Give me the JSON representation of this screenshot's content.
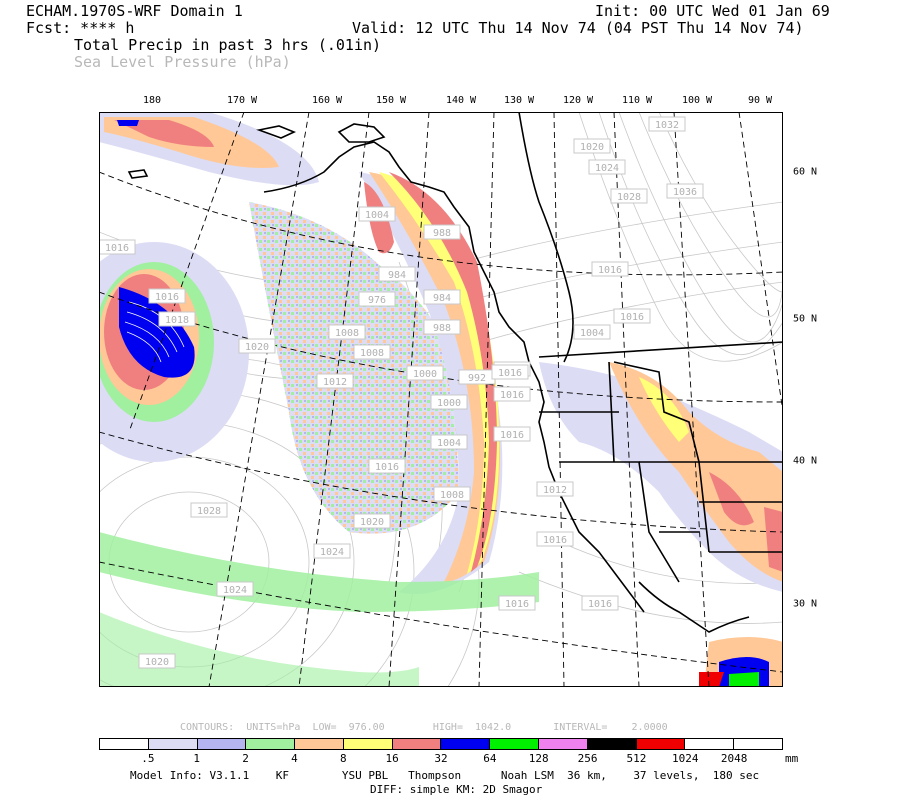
{
  "header": {
    "model": "ECHAM.1970S-WRF Domain 1",
    "fcst": "Fcst: **** h",
    "init": "Init: 00 UTC Wed 01 Jan 69",
    "valid": "Valid: 12 UTC Thu 14 Nov 74 (04 PST Thu 14 Nov 74)",
    "field1": "Total Precip in past 3 hrs (.01in)",
    "field2": "Sea Level Pressure (hPa)"
  },
  "lon_labels": [
    "180",
    "170 W",
    "160 W",
    "150 W",
    "140 W",
    "130 W",
    "120 W",
    "110 W",
    "100 W",
    "90 W"
  ],
  "lat_labels": [
    "60 N",
    "50 N",
    "40 N",
    "30 N"
  ],
  "pressure_labels": [
    "1032",
    "1020",
    "1024",
    "1028",
    "1036",
    "1016",
    "1016",
    "1004",
    "1016",
    "1016",
    "1016",
    "1016",
    "1020",
    "1018",
    "1004",
    "988",
    "984",
    "976",
    "984",
    "988",
    "992",
    "996",
    "1000",
    "1000",
    "1004",
    "1008",
    "1008",
    "1008",
    "1012",
    "1012",
    "1016",
    "1016",
    "1028",
    "1024",
    "1024",
    "1020",
    "1020",
    "1016",
    "1016",
    "1016"
  ],
  "contour_info": "CONTOURS:  UNITS=hPa  LOW=  976.00        HIGH=  1042.0       INTERVAL=    2.0000",
  "colorbar": {
    "labels": [
      ".5",
      "1",
      "2",
      "4",
      "8",
      "16",
      "32",
      "64",
      "128",
      "256",
      "512",
      "1024",
      "2048"
    ],
    "unit": "mm",
    "colors": [
      "#ffffff",
      "#dcdcf5",
      "#b4b4f0",
      "#a0f0a0",
      "#ffc896",
      "#ffff78",
      "#f08080",
      "#0000f0",
      "#00f000",
      "#f082f0",
      "#000000",
      "#f00000",
      "#ffffff",
      "#ffffff"
    ]
  },
  "footer": {
    "line1": "Model Info: V3.1.1    KF        YSU PBL   Thompson      Noah LSM  36 km,    37 levels,  180 sec",
    "line2": "DIFF: simple KM: 2D Smagor"
  },
  "colors": {
    "precip_light": "#dcdcf5",
    "precip_lavender": "#b4b4f0",
    "precip_green": "#a0f0a0",
    "precip_orange": "#ffc896",
    "precip_yellow": "#ffff78",
    "precip_red": "#f08080",
    "precip_blue": "#0000f0",
    "precip_bright_green": "#00f000",
    "precip_bright_red": "#f00000"
  }
}
